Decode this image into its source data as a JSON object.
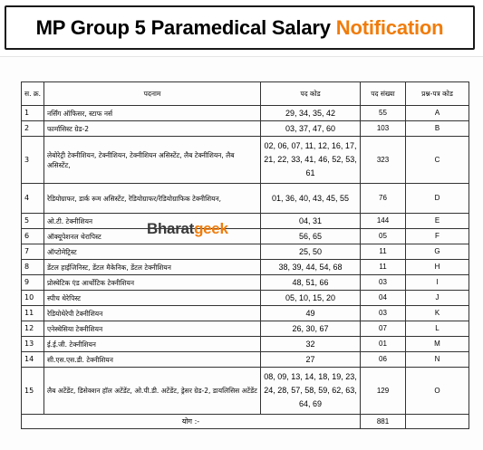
{
  "title": {
    "main": "MP Group 5 Paramedical Salary",
    "accent": "Notification"
  },
  "watermark": {
    "part1": "Bharat",
    "part2": "geek"
  },
  "table": {
    "headers": [
      "स. क्र.",
      "पदनाम",
      "पद कोड",
      "पद संख्या",
      "प्रश्न-पत्र कोड"
    ],
    "rows": [
      {
        "sn": "1",
        "post": "नर्सिंग ऑफिसर, स्टाफ नर्स",
        "codes": "29, 34, 35, 42",
        "count": "55",
        "paper": "A"
      },
      {
        "sn": "2",
        "post": "फार्मासिस्ट ग्रेड-2",
        "codes": "03, 37, 47, 60",
        "count": "103",
        "paper": "B"
      },
      {
        "sn": "3",
        "post": "लेबोरेट्री टेक्नीशियन, टेक्नीशियन, टेक्नीशियन असिस्टेंट, लैब टेक्नीशियन, लैब असिस्टेंट,",
        "codes": "02, 06, 07, 11, 12, 16, 17, 21, 22, 33, 41, 46, 52, 53, 61",
        "count": "323",
        "paper": "C"
      },
      {
        "sn": "4",
        "post": "रेडियोग्राफर, डार्क रूम असिस्टेंट, रेडियोग्राफर/रेडियोग्राफिक टेक्नीशियन,",
        "codes": "01, 36, 40, 43, 45, 55",
        "count": "76",
        "paper": "D"
      },
      {
        "sn": "5",
        "post": "ओ.टी. टेक्नीशियन",
        "codes": "04, 31",
        "count": "144",
        "paper": "E"
      },
      {
        "sn": "6",
        "post": "ऑक्यूपेशनल थेरापिस्ट",
        "codes": "56, 65",
        "count": "05",
        "paper": "F"
      },
      {
        "sn": "7",
        "post": "ऑप्टोमेट्रिस्ट",
        "codes": "25, 50",
        "count": "11",
        "paper": "G"
      },
      {
        "sn": "8",
        "post": "डेंटल हाईजिनिस्ट, डेंटल मैकेनिक, डेंटल टेक्नीशियन",
        "codes": "38, 39, 44, 54, 68",
        "count": "11",
        "paper": "H"
      },
      {
        "sn": "9",
        "post": "प्रोस्थेटिक एंड आर्थोटिक टेक्नीशियन",
        "codes": "48, 51, 66",
        "count": "03",
        "paper": "I"
      },
      {
        "sn": "10",
        "post": "स्पीच थेरेपिस्ट",
        "codes": "05, 10, 15, 20",
        "count": "04",
        "paper": "J"
      },
      {
        "sn": "11",
        "post": "रेडियोथेरेपी टेक्नीशियन",
        "codes": "49",
        "count": "03",
        "paper": "K"
      },
      {
        "sn": "12",
        "post": "एनेस्थेसिया टेक्नीशियन",
        "codes": "26, 30, 67",
        "count": "07",
        "paper": "L"
      },
      {
        "sn": "13",
        "post": "ई.ई.जी. टेक्नीशियन",
        "codes": "32",
        "count": "01",
        "paper": "M"
      },
      {
        "sn": "14",
        "post": "सी.एस.एस.डी. टेक्नीशियन",
        "codes": "27",
        "count": "06",
        "paper": "N"
      },
      {
        "sn": "15",
        "post": "लैब अटेंडेंट, डिसेक्शन हॉल अटेंडेंट, ओ.पी.डी. अटेंडेंट, ड्रेसर ग्रेड-2, डायलिसिस अटेंडेंट",
        "codes": "08, 09, 13, 14, 18, 19, 23, 24, 28, 57, 58, 59, 62, 63, 64, 69",
        "count": "129",
        "paper": "O"
      }
    ],
    "total": {
      "label": "योग :-",
      "count": "881"
    }
  }
}
